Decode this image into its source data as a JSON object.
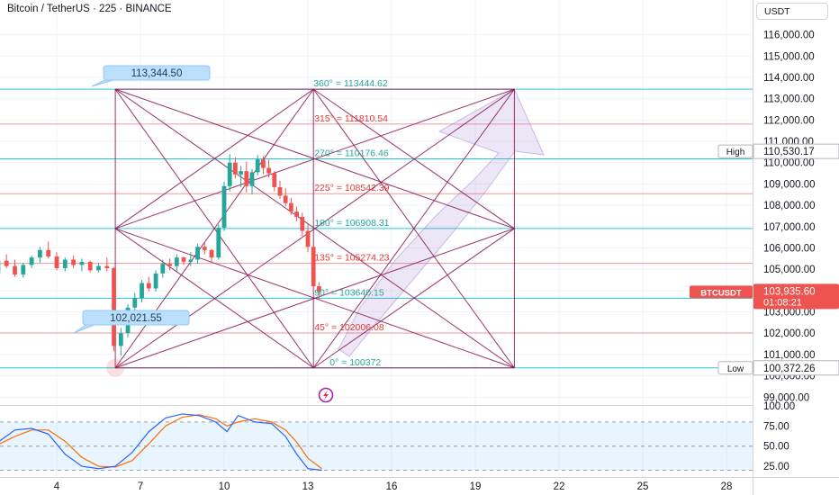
{
  "header": {
    "title": "Bitcoin / TetherUS · 225 · BINANCE",
    "currency": "USDT"
  },
  "chart_data": {
    "type": "candlestick",
    "price_axis": {
      "ticks": [
        "116,000.00",
        "115,000.00",
        "114,000.00",
        "113,000.00",
        "112,000.00",
        "111,000.00",
        "110,000.00",
        "109,000.00",
        "108,000.00",
        "107,000.00",
        "106,000.00",
        "105,000.00",
        "104,000.00",
        "103,000.00",
        "102,000.00",
        "101,000.00",
        "100,000.00",
        "99,000.00"
      ],
      "range": [
        98800,
        116700
      ]
    },
    "time_axis": {
      "ticks": [
        "4",
        "7",
        "10",
        "13",
        "16",
        "19",
        "22",
        "25",
        "28"
      ]
    },
    "gann_levels": [
      {
        "label": "360° = 113444.62",
        "price": 113444.62,
        "color": "#26c6da",
        "text_color": "#26a69a"
      },
      {
        "label": "315° = 111810.54",
        "price": 111810.54,
        "color": "#ef9a9a",
        "text_color": "#e53935"
      },
      {
        "label": "270° = 110176.46",
        "price": 110176.46,
        "color": "#26c6da",
        "text_color": "#26a69a"
      },
      {
        "label": "225° = 108542.39",
        "price": 108542.39,
        "color": "#ef9a9a",
        "text_color": "#e53935"
      },
      {
        "label": "180° = 106908.31",
        "price": 106908.31,
        "color": "#26c6da",
        "text_color": "#26a69a"
      },
      {
        "label": "135° = 105274.23",
        "price": 105274.23,
        "color": "#ef9a9a",
        "text_color": "#e53935"
      },
      {
        "label": "90° = 103640.15",
        "price": 103640.15,
        "color": "#26c6da",
        "text_color": "#26a69a"
      },
      {
        "label": "45° = 102006.08",
        "price": 102006.08,
        "color": "#ef9a9a",
        "text_color": "#e53935"
      },
      {
        "label": "0° = 100372",
        "price": 100372,
        "color": "#26c6da",
        "text_color": "#26a69a"
      }
    ],
    "callouts": [
      {
        "text": "113,344.50",
        "price": 113344.5
      },
      {
        "text": "102,021.55",
        "price": 102021.55
      }
    ],
    "markers": [
      {
        "label": "High",
        "value": "110,530.17",
        "price": 110530.17
      },
      {
        "label": "BTCUSDT",
        "value": "103,935.60",
        "countdown": "01:08:21",
        "price": 103935.6
      },
      {
        "label": "Low",
        "value": "100,372.26",
        "price": 100372.26
      }
    ],
    "gann_box": {
      "start_day": 6.1,
      "mid_day": 13.2,
      "end_day": 20.4,
      "high": 113444.62,
      "low": 100372
    },
    "candles": [
      [
        0.7,
        104950,
        105350,
        104650,
        105200
      ],
      [
        1.0,
        105200,
        105550,
        104950,
        105050
      ],
      [
        1.3,
        105050,
        105300,
        104350,
        104500
      ],
      [
        1.6,
        104500,
        104900,
        104200,
        104800
      ],
      [
        1.9,
        104800,
        105500,
        104700,
        105400
      ],
      [
        2.2,
        105400,
        105700,
        105050,
        105150
      ],
      [
        2.5,
        105150,
        105450,
        104650,
        104750
      ],
      [
        2.8,
        104750,
        105300,
        104600,
        105200
      ],
      [
        3.1,
        105200,
        105650,
        105050,
        105550
      ],
      [
        3.4,
        105550,
        106050,
        105300,
        105900
      ],
      [
        3.7,
        105900,
        106300,
        105500,
        105600
      ],
      [
        4.0,
        105600,
        105800,
        104950,
        105050
      ],
      [
        4.3,
        105050,
        105550,
        104900,
        105450
      ],
      [
        4.6,
        105450,
        105650,
        105050,
        105200
      ],
      [
        4.9,
        105200,
        105500,
        104900,
        105350
      ],
      [
        5.2,
        105350,
        105400,
        104850,
        104950
      ],
      [
        5.5,
        104950,
        105300,
        104850,
        105150
      ],
      [
        5.8,
        105150,
        105550,
        104900,
        105050
      ],
      [
        6.05,
        105050,
        105100,
        101150,
        101400
      ],
      [
        6.3,
        101400,
        102250,
        100950,
        102000
      ],
      [
        6.55,
        102000,
        103350,
        101800,
        103200
      ],
      [
        6.8,
        103200,
        103900,
        102950,
        103650
      ],
      [
        7.05,
        103650,
        104500,
        103450,
        104350
      ],
      [
        7.3,
        104350,
        104650,
        103950,
        104100
      ],
      [
        7.55,
        104100,
        104950,
        103950,
        104800
      ],
      [
        7.8,
        104800,
        105450,
        104600,
        105250
      ],
      [
        8.05,
        105250,
        105500,
        104950,
        105150
      ],
      [
        8.3,
        105150,
        105700,
        104900,
        105550
      ],
      [
        8.55,
        105550,
        105600,
        105200,
        105350
      ],
      [
        8.8,
        105350,
        105800,
        105150,
        105450
      ],
      [
        9.05,
        105450,
        106200,
        105250,
        106050
      ],
      [
        9.3,
        106050,
        106250,
        105700,
        105900
      ],
      [
        9.55,
        105900,
        105950,
        105300,
        105550
      ],
      [
        9.8,
        105550,
        107100,
        105450,
        106950
      ],
      [
        10.0,
        106950,
        109100,
        106800,
        108900
      ],
      [
        10.2,
        108900,
        110400,
        108650,
        110000
      ],
      [
        10.4,
        110000,
        110250,
        109250,
        109450
      ],
      [
        10.6,
        109450,
        109850,
        108850,
        109600
      ],
      [
        10.8,
        109600,
        110050,
        108600,
        108900
      ],
      [
        11.0,
        108900,
        109700,
        108500,
        109550
      ],
      [
        11.2,
        109550,
        110350,
        109400,
        110150
      ],
      [
        11.4,
        110150,
        110300,
        109450,
        109750
      ],
      [
        11.6,
        109750,
        110150,
        109300,
        109500
      ],
      [
        11.8,
        109500,
        109600,
        108650,
        108850
      ],
      [
        12.0,
        108850,
        109150,
        108300,
        108450
      ],
      [
        12.2,
        108450,
        108800,
        107950,
        108100
      ],
      [
        12.4,
        108100,
        108350,
        107550,
        107700
      ],
      [
        12.6,
        107700,
        107950,
        107250,
        107450
      ],
      [
        12.8,
        107450,
        107650,
        106550,
        106800
      ],
      [
        13.0,
        106800,
        107100,
        105800,
        106050
      ],
      [
        13.2,
        106050,
        106100,
        103950,
        104200
      ],
      [
        13.4,
        104200,
        104400,
        103600,
        103935
      ]
    ],
    "stoch": {
      "range": [
        15,
        100
      ],
      "ticks": [
        "100.00",
        "75.00",
        "50.00",
        "25.00"
      ],
      "k_color": "#2962ff",
      "d_color": "#ff6d00",
      "k": [
        [
          0,
          70
        ],
        [
          0.7,
          60
        ],
        [
          1.3,
          40
        ],
        [
          1.9,
          55
        ],
        [
          2.5,
          70
        ],
        [
          3.1,
          72
        ],
        [
          3.7,
          65
        ],
        [
          4.3,
          40
        ],
        [
          4.9,
          25
        ],
        [
          5.5,
          22
        ],
        [
          6.1,
          25
        ],
        [
          6.7,
          42
        ],
        [
          7.3,
          68
        ],
        [
          7.9,
          85
        ],
        [
          8.5,
          90
        ],
        [
          9.1,
          88
        ],
        [
          9.7,
          80
        ],
        [
          10.1,
          68
        ],
        [
          10.5,
          88
        ],
        [
          11.1,
          80
        ],
        [
          11.7,
          78
        ],
        [
          12.2,
          62
        ],
        [
          12.6,
          40
        ],
        [
          13.0,
          22
        ],
        [
          13.5,
          20
        ]
      ],
      "d": [
        [
          0,
          72
        ],
        [
          0.7,
          68
        ],
        [
          1.3,
          52
        ],
        [
          1.9,
          52
        ],
        [
          2.5,
          62
        ],
        [
          3.1,
          70
        ],
        [
          3.7,
          70
        ],
        [
          4.3,
          56
        ],
        [
          4.9,
          36
        ],
        [
          5.5,
          25
        ],
        [
          6.1,
          24
        ],
        [
          6.7,
          32
        ],
        [
          7.3,
          53
        ],
        [
          7.9,
          75
        ],
        [
          8.5,
          86
        ],
        [
          9.1,
          89
        ],
        [
          9.7,
          84
        ],
        [
          10.1,
          75
        ],
        [
          10.5,
          80
        ],
        [
          11.1,
          84
        ],
        [
          11.7,
          80
        ],
        [
          12.2,
          70
        ],
        [
          12.6,
          55
        ],
        [
          13.0,
          35
        ],
        [
          13.5,
          22
        ]
      ]
    }
  }
}
